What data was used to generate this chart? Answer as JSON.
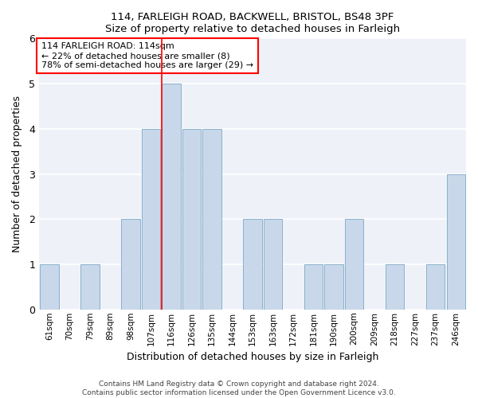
{
  "title1": "114, FARLEIGH ROAD, BACKWELL, BRISTOL, BS48 3PF",
  "title2": "Size of property relative to detached houses in Farleigh",
  "xlabel": "Distribution of detached houses by size in Farleigh",
  "ylabel": "Number of detached properties",
  "categories": [
    "61sqm",
    "70sqm",
    "79sqm",
    "89sqm",
    "98sqm",
    "107sqm",
    "116sqm",
    "126sqm",
    "135sqm",
    "144sqm",
    "153sqm",
    "163sqm",
    "172sqm",
    "181sqm",
    "190sqm",
    "200sqm",
    "209sqm",
    "218sqm",
    "227sqm",
    "237sqm",
    "246sqm"
  ],
  "values": [
    1,
    0,
    1,
    0,
    2,
    4,
    5,
    4,
    4,
    0,
    2,
    2,
    0,
    1,
    1,
    2,
    0,
    1,
    0,
    1,
    3
  ],
  "bar_color": "#c8d8ea",
  "bar_edge_color": "#8ab0cc",
  "red_line_index": 6,
  "annotation_title": "114 FARLEIGH ROAD: 114sqm",
  "annotation_line1": "← 22% of detached houses are smaller (8)",
  "annotation_line2": "78% of semi-detached houses are larger (29) →",
  "ylim": [
    0,
    6
  ],
  "yticks": [
    0,
    1,
    2,
    3,
    4,
    5,
    6
  ],
  "footer1": "Contains HM Land Registry data © Crown copyright and database right 2024.",
  "footer2": "Contains public sector information licensed under the Open Government Licence v3.0.",
  "bg_color": "#eef2f8"
}
